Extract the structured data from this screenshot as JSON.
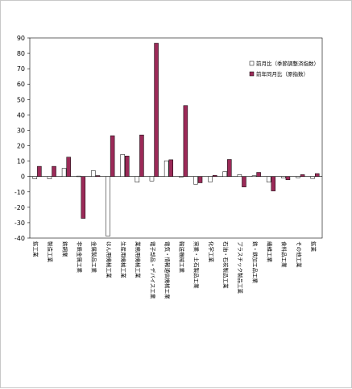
{
  "chart_data": {
    "type": "bar",
    "title": "",
    "xlabel": "",
    "ylabel": "",
    "ylim": [
      -40,
      90
    ],
    "yticks": [
      90,
      80,
      70,
      60,
      50,
      40,
      30,
      20,
      10,
      0,
      -10,
      -20,
      -30,
      -40
    ],
    "categories": [
      "鉱工業",
      "製造工業",
      "鉄鋼業",
      "非鉄金属工業",
      "金属製品工業",
      "はん用機械工業",
      "生産用機械工業",
      "業務用機械工業",
      "電子部品・デバイス工業",
      "電気・情報通信機械工業",
      "輸送機械工業",
      "窯業・土石製品工業",
      "化学工業",
      "石油・石炭製品工業",
      "プラスチック製品工業",
      "鉄・鉄加工品工業",
      "繊維工業",
      "食料品工業",
      "その他工業",
      "鉱業"
    ],
    "series": [
      {
        "name": "前月比（季節調整済指数）",
        "color": "#ffffff",
        "values": [
          -1.5,
          -1.5,
          5.3,
          0.3,
          3.8,
          -38.7,
          14.3,
          -3.7,
          -2.9,
          10.2,
          -0.4,
          -5.0,
          -3.5,
          3.2,
          1.2,
          0.5,
          -3.6,
          -0.9,
          -0.8,
          -1.3
        ]
      },
      {
        "name": "前年同月比（原指数）",
        "color": "#9b2a58",
        "values": [
          6.6,
          6.6,
          12.6,
          -27.2,
          0.6,
          26.5,
          13.3,
          27.0,
          86.6,
          10.9,
          46.1,
          -4.1,
          0.8,
          11.1,
          -6.8,
          2.7,
          -9.4,
          -2.1,
          1.2,
          1.9
        ]
      }
    ],
    "legend_position": "right",
    "grid": false
  }
}
